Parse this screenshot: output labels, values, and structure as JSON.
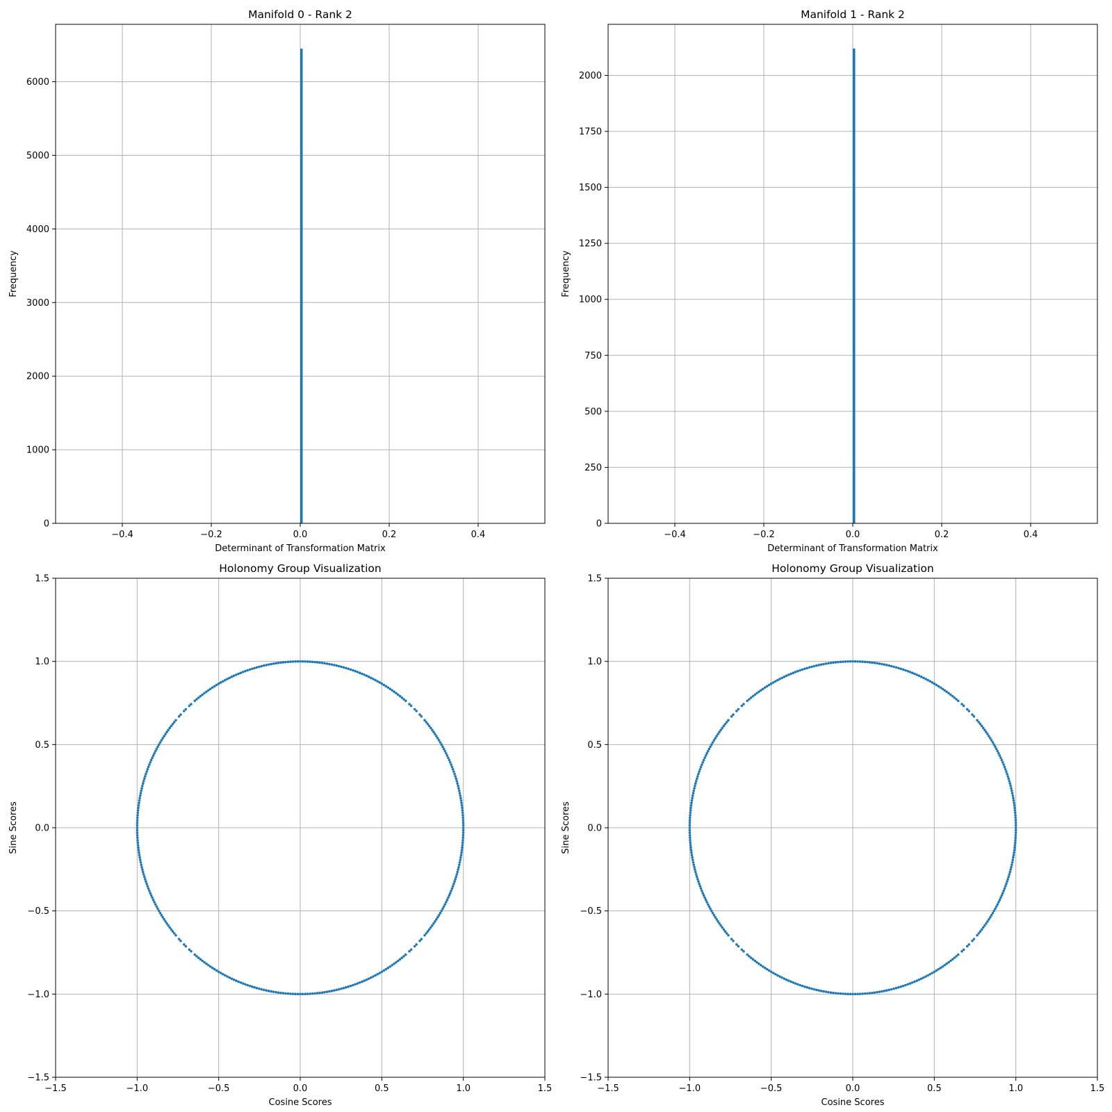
{
  "chart_data": [
    {
      "type": "bar",
      "subtype": "histogram",
      "title": "Manifold 0 - Rank 2",
      "xlabel": "Determinant of Transformation Matrix",
      "ylabel": "Frequency",
      "xlim": [
        -0.55,
        0.55
      ],
      "ylim": [
        0,
        6780
      ],
      "xticks": [
        -0.4,
        -0.2,
        0.0,
        0.2,
        0.4
      ],
      "xtick_labels": [
        "−0.4",
        "−0.2",
        "0.0",
        "0.2",
        "0.4"
      ],
      "yticks": [
        0,
        1000,
        2000,
        3000,
        4000,
        5000,
        6000
      ],
      "ytick_labels": [
        "0",
        "1000",
        "2000",
        "3000",
        "4000",
        "5000",
        "6000"
      ],
      "bins": [
        {
          "x0": 0.0,
          "x1": 0.0055,
          "count": 6450
        }
      ],
      "grid": true,
      "color": "#1f77b4"
    },
    {
      "type": "bar",
      "subtype": "histogram",
      "title": "Manifold 1 - Rank 2",
      "xlabel": "Determinant of Transformation Matrix",
      "ylabel": "Frequency",
      "xlim": [
        -0.55,
        0.55
      ],
      "ylim": [
        0,
        2228
      ],
      "xticks": [
        -0.4,
        -0.2,
        0.0,
        0.2,
        0.4
      ],
      "xtick_labels": [
        "−0.4",
        "−0.2",
        "0.0",
        "0.2",
        "0.4"
      ],
      "yticks": [
        0,
        250,
        500,
        750,
        1000,
        1250,
        1500,
        1750,
        2000
      ],
      "ytick_labels": [
        "0",
        "250",
        "500",
        "750",
        "1000",
        "1250",
        "1500",
        "1750",
        "2000"
      ],
      "bins": [
        {
          "x0": 0.0,
          "x1": 0.0055,
          "count": 2120
        }
      ],
      "grid": true,
      "color": "#1f77b4"
    },
    {
      "type": "scatter",
      "title": "Holonomy Group Visualization",
      "xlabel": "Cosine Scores",
      "ylabel": "Sine Scores",
      "xlim": [
        -1.5,
        1.5
      ],
      "ylim": [
        -1.5,
        1.5
      ],
      "xticks": [
        -1.5,
        -1.0,
        -0.5,
        0.0,
        0.5,
        1.0,
        1.5
      ],
      "xtick_labels": [
        "−1.5",
        "−1.0",
        "−0.5",
        "0.0",
        "0.5",
        "1.0",
        "1.5"
      ],
      "yticks": [
        -1.5,
        -1.0,
        -0.5,
        0.0,
        0.5,
        1.0,
        1.5
      ],
      "ytick_labels": [
        "−1.5",
        "−1.0",
        "−0.5",
        "0.0",
        "0.5",
        "1.0",
        "1.5"
      ],
      "points": {
        "shape": "unit circle",
        "center": [
          0,
          0
        ],
        "radius": 1.0
      },
      "grid": true,
      "color": "#1f77b4"
    },
    {
      "type": "scatter",
      "title": "Holonomy Group Visualization",
      "xlabel": "Cosine Scores",
      "ylabel": "Sine Scores",
      "xlim": [
        -1.5,
        1.5
      ],
      "ylim": [
        -1.5,
        1.5
      ],
      "xticks": [
        -1.5,
        -1.0,
        -0.5,
        0.0,
        0.5,
        1.0,
        1.5
      ],
      "xtick_labels": [
        "−1.5",
        "−1.0",
        "−0.5",
        "0.0",
        "0.5",
        "1.0",
        "1.5"
      ],
      "yticks": [
        -1.5,
        -1.0,
        -0.5,
        0.0,
        0.5,
        1.0,
        1.5
      ],
      "ytick_labels": [
        "−1.5",
        "−1.0",
        "−0.5",
        "0.0",
        "0.5",
        "1.0",
        "1.5"
      ],
      "points": {
        "shape": "unit circle",
        "center": [
          0,
          0
        ],
        "radius": 1.0
      },
      "grid": true,
      "color": "#1f77b4"
    }
  ]
}
